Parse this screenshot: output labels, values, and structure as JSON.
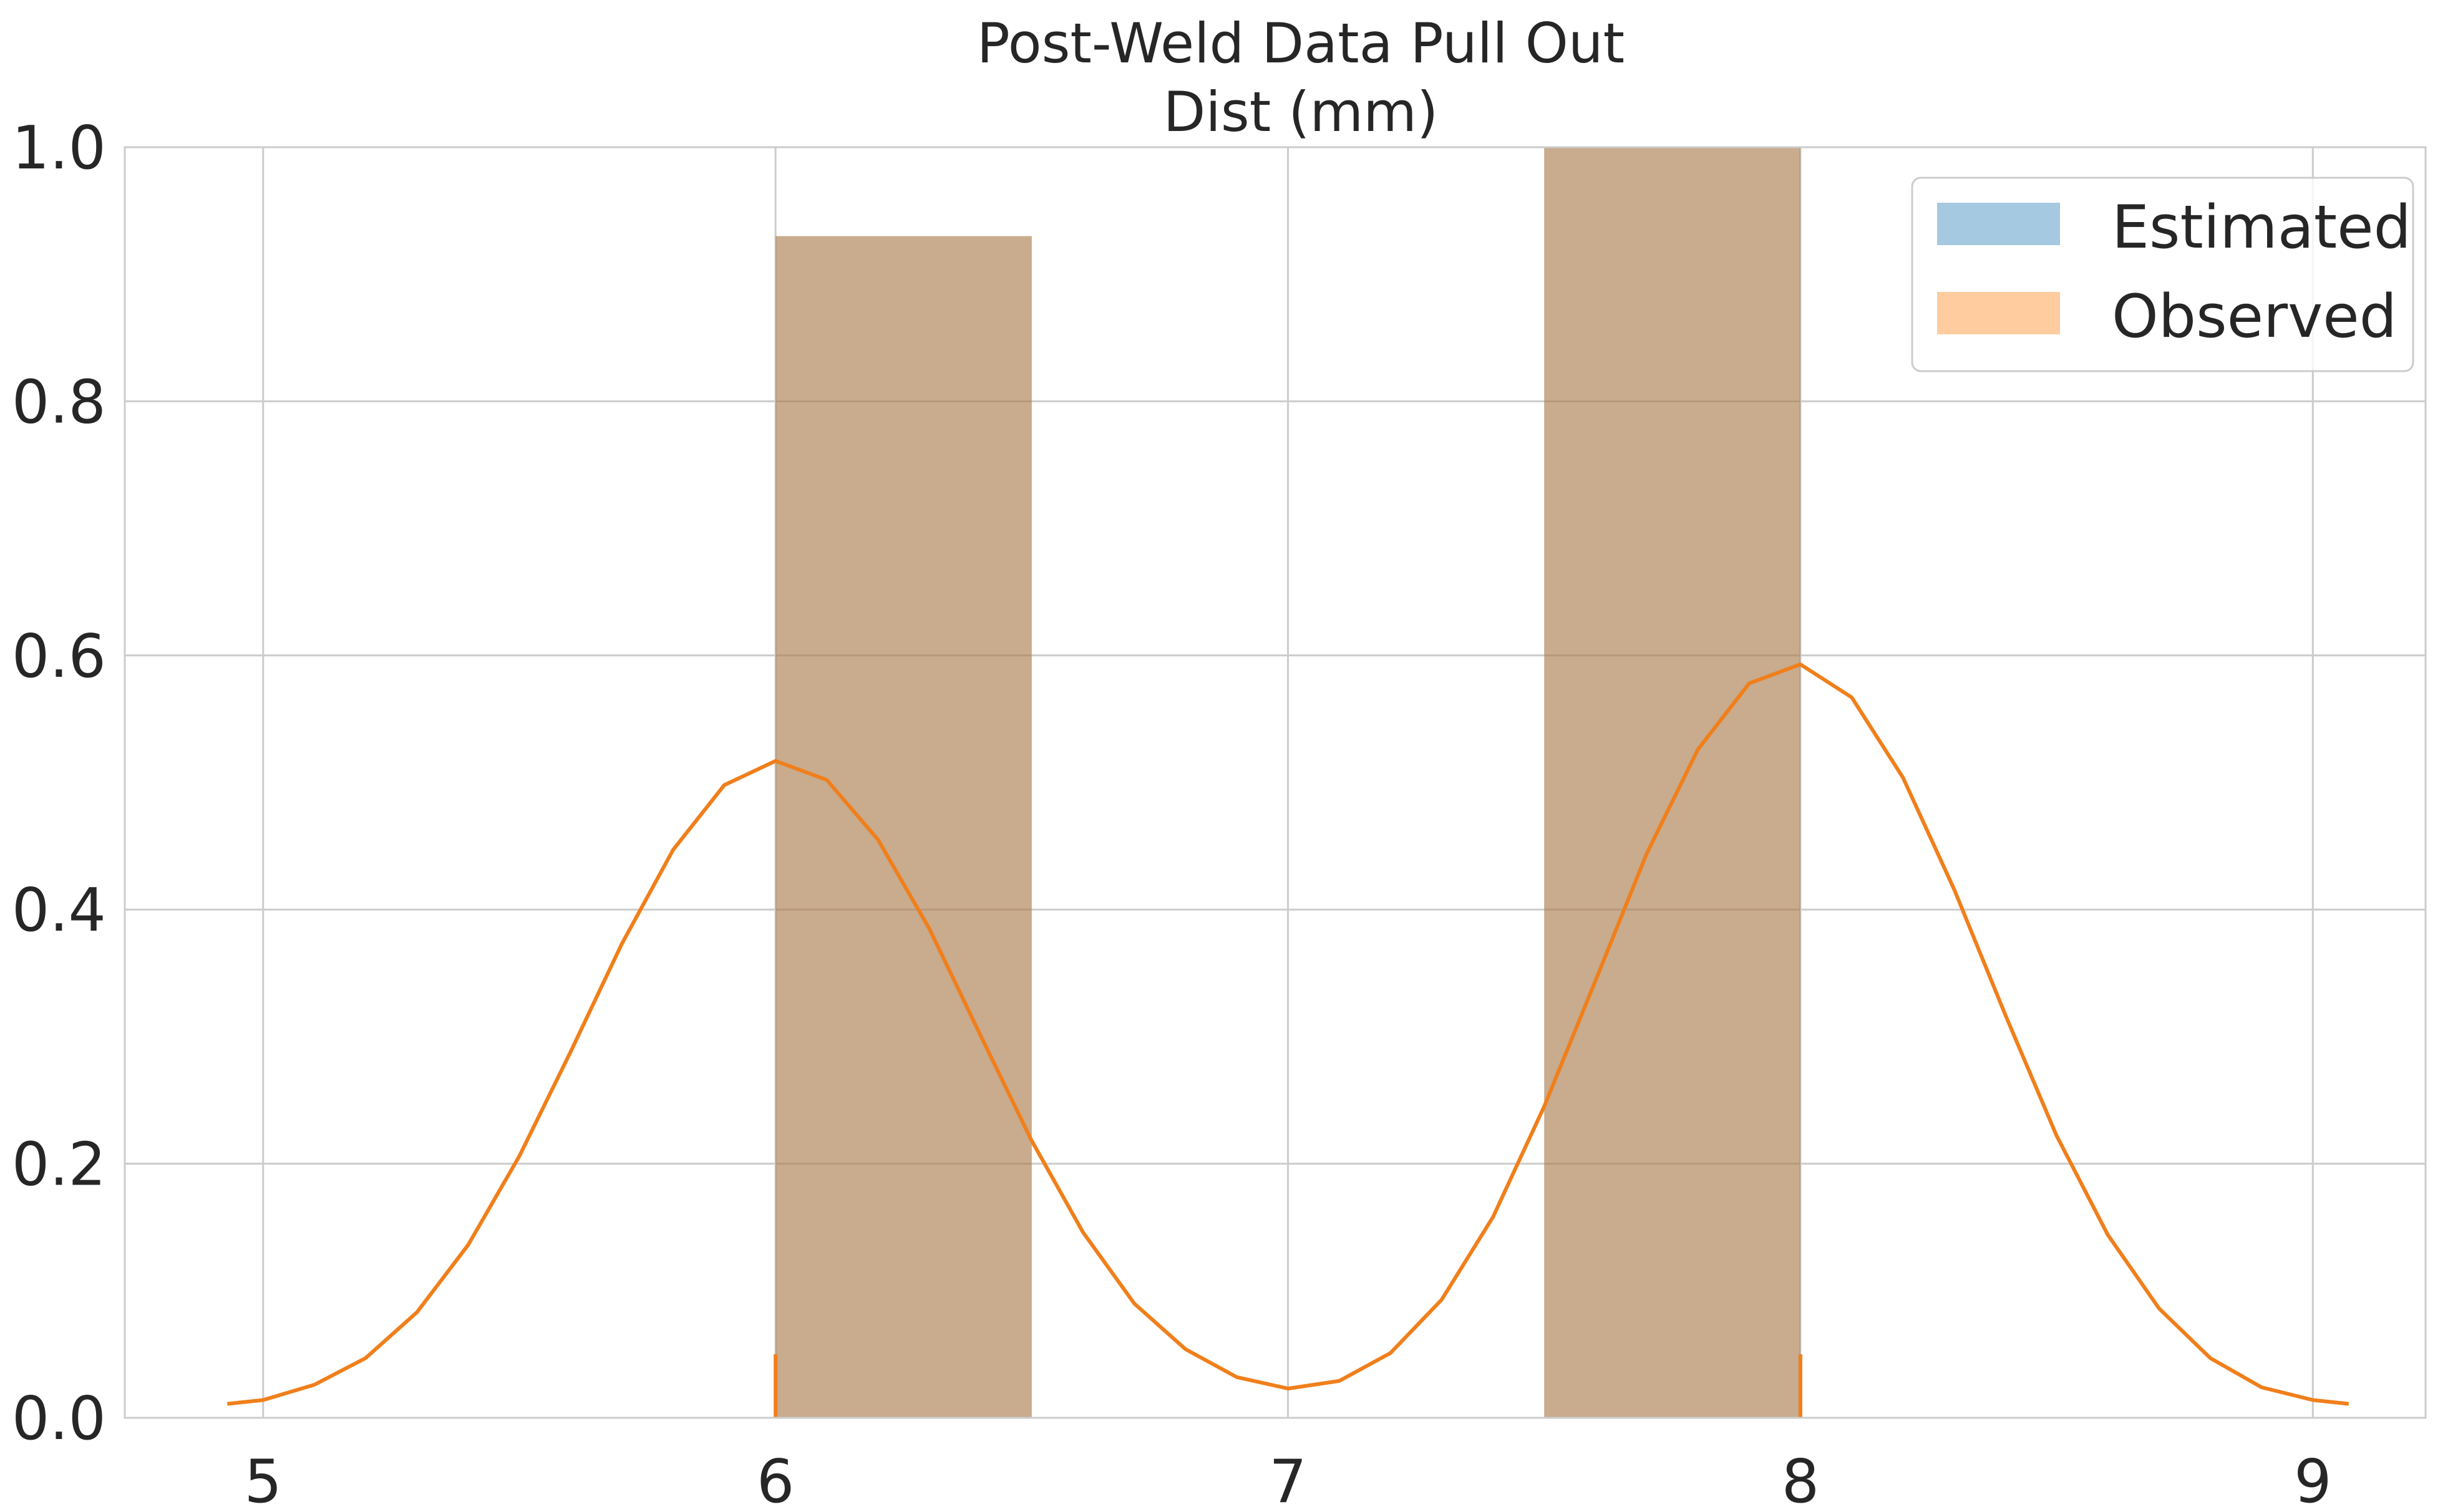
{
  "chart_data": {
    "type": "bar",
    "title_line1": "Post-Weld Data Pull Out",
    "title_line2": "Dist (mm)",
    "xlabel": "",
    "ylabel": "",
    "xlim": [
      4.73,
      9.22
    ],
    "ylim": [
      0,
      1.0
    ],
    "xticks": [
      "5",
      "6",
      "7",
      "8",
      "9"
    ],
    "xtick_values": [
      5,
      6,
      7,
      8,
      9
    ],
    "yticks": [
      "0.0",
      "0.2",
      "0.4",
      "0.6",
      "0.8",
      "1.0"
    ],
    "ytick_values": [
      0,
      0.2,
      0.4,
      0.6,
      0.8,
      1.0
    ],
    "grid": true,
    "legend_position": "top-right",
    "series": [
      {
        "name": "Estimated",
        "kind": "histogram",
        "color": "#1f77b4",
        "opacity": 0.4,
        "bins": [
          {
            "x0": 6.0,
            "x1": 6.5,
            "value": 0.93
          },
          {
            "x0": 6.5,
            "x1": 7.0,
            "value": 0.0
          },
          {
            "x0": 7.0,
            "x1": 7.5,
            "value": 0.0
          },
          {
            "x0": 7.5,
            "x1": 8.0,
            "value": 1.07
          }
        ]
      },
      {
        "name": "Observed",
        "kind": "histogram",
        "color": "#ff7f0e",
        "opacity": 0.4,
        "bins": [
          {
            "x0": 6.0,
            "x1": 6.5,
            "value": 0.93
          },
          {
            "x0": 6.5,
            "x1": 7.0,
            "value": 0.0
          },
          {
            "x0": 7.0,
            "x1": 7.5,
            "value": 0.0
          },
          {
            "x0": 7.5,
            "x1": 8.0,
            "value": 1.07
          }
        ]
      }
    ],
    "kde": {
      "color": "#f07f1b",
      "x": [
        4.93,
        5.0,
        5.1,
        5.2,
        5.3,
        5.4,
        5.5,
        5.6,
        5.7,
        5.8,
        5.9,
        6.0,
        6.1,
        6.2,
        6.3,
        6.4,
        6.5,
        6.6,
        6.7,
        6.8,
        6.9,
        7.0,
        7.1,
        7.2,
        7.3,
        7.4,
        7.5,
        7.6,
        7.7,
        7.8,
        7.9,
        8.0,
        8.1,
        8.2,
        8.3,
        8.4,
        8.5,
        8.6,
        8.7,
        8.8,
        8.9,
        9.0,
        9.07
      ],
      "y": [
        0.011,
        0.014,
        0.026,
        0.047,
        0.083,
        0.136,
        0.206,
        0.288,
        0.373,
        0.447,
        0.498,
        0.517,
        0.502,
        0.455,
        0.385,
        0.301,
        0.218,
        0.146,
        0.09,
        0.054,
        0.032,
        0.023,
        0.029,
        0.051,
        0.093,
        0.158,
        0.245,
        0.344,
        0.444,
        0.526,
        0.578,
        0.593,
        0.567,
        0.504,
        0.416,
        0.317,
        0.222,
        0.144,
        0.086,
        0.047,
        0.024,
        0.014,
        0.011
      ]
    },
    "rug": {
      "color": "#f07f1b",
      "x": [
        6.0,
        8.0
      ],
      "height": 0.05
    }
  }
}
